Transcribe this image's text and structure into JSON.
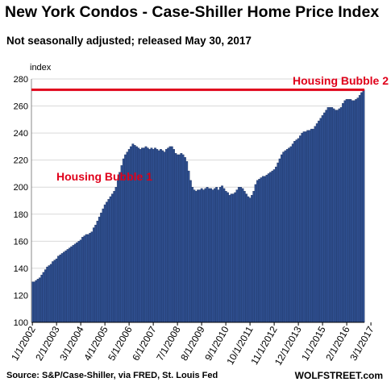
{
  "title": "New York Condos - Case-Shiller Home Price Index",
  "subtitle": "Not seasonally adjusted; released May 30, 2017",
  "source": "Source: S&P/Case-Shiller, via FRED,  St. Louis Fed",
  "brand": "WOLFSTREET.com",
  "colors": {
    "bar": "#2f4f8f",
    "bar_edge": "#1b2f5c",
    "line": "#e0001a",
    "annotation": "#e0001a",
    "grid": "#d9d9d9"
  },
  "chart_data": {
    "type": "bar",
    "ylabel": "index",
    "ylim": [
      100,
      280
    ],
    "yticks": [
      100,
      120,
      140,
      160,
      180,
      200,
      220,
      240,
      260,
      280
    ],
    "grid": true,
    "x_start": "2002-01",
    "xticklabels": [
      "1/1/2002",
      "2/1/2003",
      "3/1/2004",
      "4/1/2005",
      "5/1/2006",
      "6/1/2007",
      "7/1/2008",
      "8/1/2009",
      "9/1/2010",
      "10/1/2011",
      "11/1/2012",
      "12/1/2013",
      "1/1/2015",
      "2/1/2016",
      "3/1/2017"
    ],
    "reference_line": {
      "value": 272
    },
    "annotations": [
      {
        "text": "Housing Bubble 1"
      },
      {
        "text": "Housing Bubble 2"
      }
    ],
    "values": [
      130,
      130,
      131,
      132,
      133,
      135,
      137,
      139,
      141,
      142,
      143,
      145,
      146,
      147,
      149,
      150,
      151,
      152,
      153,
      154,
      155,
      156,
      157,
      158,
      159,
      160,
      161,
      163,
      164,
      165,
      165,
      166,
      167,
      170,
      172,
      175,
      178,
      181,
      184,
      187,
      189,
      191,
      193,
      195,
      197,
      200,
      205,
      211,
      216,
      221,
      224,
      226,
      228,
      230,
      232,
      231,
      230,
      229,
      228,
      229,
      229,
      230,
      229,
      228,
      229,
      228,
      229,
      228,
      227,
      228,
      227,
      226,
      228,
      229,
      230,
      230,
      228,
      225,
      224,
      224,
      225,
      224,
      222,
      219,
      212,
      205,
      200,
      198,
      197,
      198,
      198,
      199,
      198,
      199,
      200,
      199,
      199,
      198,
      199,
      200,
      198,
      200,
      201,
      199,
      197,
      196,
      194,
      195,
      195,
      196,
      198,
      200,
      200,
      199,
      197,
      195,
      193,
      192,
      194,
      197,
      202,
      205,
      206,
      207,
      208,
      208,
      209,
      210,
      211,
      212,
      213,
      215,
      218,
      221,
      224,
      226,
      227,
      228,
      229,
      230,
      232,
      234,
      235,
      236,
      238,
      240,
      241,
      241,
      242,
      242,
      243,
      243,
      245,
      247,
      249,
      251,
      253,
      255,
      257,
      259,
      259,
      259,
      258,
      257,
      257,
      258,
      259,
      262,
      264,
      265,
      265,
      265,
      264,
      264,
      265,
      266,
      268,
      270,
      272
    ]
  }
}
